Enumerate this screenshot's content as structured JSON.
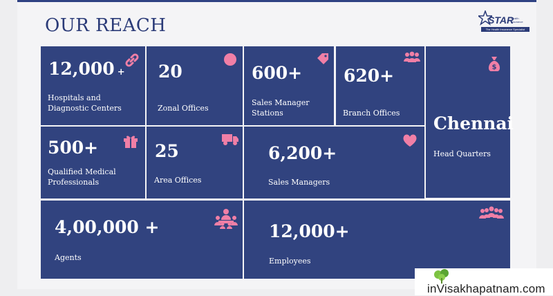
{
  "title": "OUR REACH",
  "logo": {
    "brand": "STAR",
    "sub_line1": "Health",
    "sub_line2": "Insurance",
    "tagline": "The Health Insurance Specialist"
  },
  "tiles": {
    "hospitals": {
      "value": "12,000",
      "suffix": "+",
      "label_line1": "Hospitals and",
      "label_line2": "Diagnostic Centers",
      "icon": "link-icon"
    },
    "zonal": {
      "value": "20",
      "label": "Zonal Offices",
      "icon": "circle-icon"
    },
    "sales_manager_stations": {
      "value": "600+",
      "label_line1": "Sales Manager",
      "label_line2": "Stations",
      "icon": "tag-icon"
    },
    "branch": {
      "value": "620+",
      "label": "Branch Offices",
      "icon": "group-icon"
    },
    "head_quarters": {
      "value": "Chennai",
      "label": "Head Quarters",
      "icon": "money-bag-icon"
    },
    "medical": {
      "value": "500+",
      "label_line1": "Qualified Medical",
      "label_line2": "Professionals",
      "icon": "gift-icon"
    },
    "area": {
      "value": "25",
      "label": "Area Offices",
      "icon": "truck-icon"
    },
    "sales_managers": {
      "value": "6,200+",
      "label": "Sales Managers",
      "icon": "heart-icon"
    },
    "agents": {
      "value": "4,00,000 +",
      "label": "Agents",
      "icon": "meeting-icon"
    },
    "employees": {
      "value": "12,000+",
      "label": "Employees",
      "icon": "team-icon"
    }
  },
  "colors": {
    "tile": "#31437f",
    "icon": "#f07fa6",
    "title": "#2b3b78"
  },
  "watermark": {
    "text": "inVisakhapatnam.com"
  }
}
